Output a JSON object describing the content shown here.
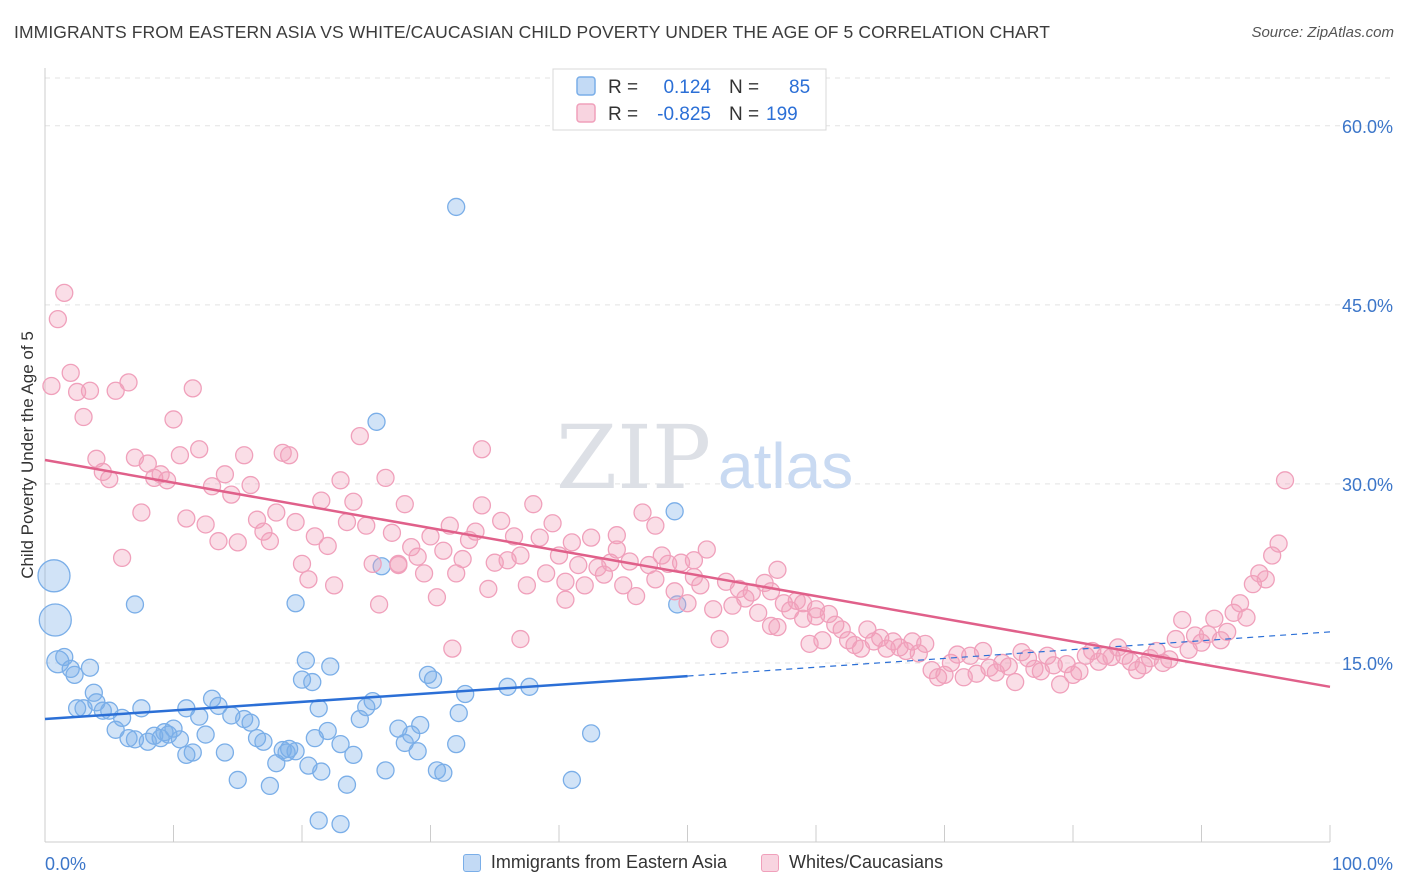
{
  "title": "IMMIGRANTS FROM EASTERN ASIA VS WHITE/CAUCASIAN CHILD POVERTY UNDER THE AGE OF 5 CORRELATION CHART",
  "source": "Source: ZipAtlas.com",
  "watermark": {
    "zip": "ZIP",
    "atlas": "atlas"
  },
  "legend_box": {
    "rows": [
      {
        "r_label": "R =",
        "r_value": "0.124",
        "n_label": "N =",
        "n_value": "85",
        "color": "#7aaee8"
      },
      {
        "r_label": "R =",
        "r_value": "-0.825",
        "n_label": "N =",
        "n_value": "199",
        "color": "#f0a0bb"
      }
    ]
  },
  "chart_data": {
    "type": "scatter",
    "title": "IMMIGRANTS FROM EASTERN ASIA VS WHITE/CAUCASIAN CHILD POVERTY UNDER THE AGE OF 5 CORRELATION CHART",
    "xlabel": "",
    "ylabel": "Child Poverty Under the Age of 5",
    "xlim": [
      0,
      100
    ],
    "ylim": [
      0,
      64
    ],
    "x_tick_labels": [
      "0.0%",
      "100.0%"
    ],
    "y_ticks": [
      15,
      30,
      45,
      60
    ],
    "y_tick_labels": [
      "15.0%",
      "30.0%",
      "45.0%",
      "60.0%"
    ],
    "grid": true,
    "legend_position": "top-center",
    "series": [
      {
        "name": "Immigrants from Eastern Asia",
        "color": "#7aaee8",
        "fill": "rgba(122,174,232,0.35)",
        "line_color": "#2b6fd6",
        "trend": {
          "x0": 0,
          "y0": 10.3,
          "x1": 50,
          "y1": 13.9,
          "x_end_dashed": 100,
          "y_end_dashed": 17.6
        },
        "points": [
          [
            0.7,
            22.3,
            "big"
          ],
          [
            0.8,
            18.6,
            "big"
          ],
          [
            1.0,
            15.1,
            "mid"
          ],
          [
            1.5,
            15.5
          ],
          [
            2.0,
            14.5
          ],
          [
            2.3,
            14.0
          ],
          [
            3.5,
            14.6
          ],
          [
            2.5,
            11.2
          ],
          [
            3.0,
            11.2
          ],
          [
            3.8,
            12.5
          ],
          [
            4.0,
            11.7
          ],
          [
            4.5,
            11.0
          ],
          [
            5.0,
            11.0
          ],
          [
            5.5,
            9.4
          ],
          [
            6.0,
            10.4
          ],
          [
            6.5,
            8.7
          ],
          [
            7.0,
            8.6
          ],
          [
            7.5,
            11.2
          ],
          [
            8.0,
            8.4
          ],
          [
            8.5,
            8.9
          ],
          [
            9.0,
            8.7
          ],
          [
            9.3,
            9.2
          ],
          [
            9.6,
            9.0
          ],
          [
            10.0,
            9.5
          ],
          [
            10.5,
            8.6
          ],
          [
            11.0,
            7.3
          ],
          [
            11.5,
            7.5
          ],
          [
            12.0,
            10.5
          ],
          [
            11.0,
            11.2
          ],
          [
            12.5,
            9.0
          ],
          [
            13.0,
            12.0
          ],
          [
            13.5,
            11.4
          ],
          [
            14.0,
            7.5
          ],
          [
            14.5,
            10.6
          ],
          [
            15.0,
            5.2
          ],
          [
            15.5,
            10.3
          ],
          [
            16.0,
            10.0
          ],
          [
            16.5,
            8.7
          ],
          [
            17.0,
            8.4
          ],
          [
            17.5,
            4.7
          ],
          [
            18.0,
            6.6
          ],
          [
            18.5,
            7.7
          ],
          [
            19.0,
            7.8
          ],
          [
            18.8,
            7.5
          ],
          [
            19.5,
            7.6
          ],
          [
            20.0,
            13.6
          ],
          [
            20.5,
            6.4
          ],
          [
            21.0,
            8.7
          ],
          [
            21.5,
            5.9
          ],
          [
            22.0,
            9.3
          ],
          [
            7.0,
            19.9
          ],
          [
            19.5,
            20.0
          ],
          [
            20.3,
            15.2
          ],
          [
            20.8,
            13.4
          ],
          [
            21.3,
            11.2
          ],
          [
            22.2,
            14.7
          ],
          [
            23.0,
            8.2
          ],
          [
            23.5,
            4.8
          ],
          [
            24.0,
            7.3
          ],
          [
            24.5,
            10.3
          ],
          [
            25.0,
            11.3
          ],
          [
            25.5,
            11.8
          ],
          [
            25.8,
            35.2
          ],
          [
            26.2,
            23.1
          ],
          [
            26.5,
            6.0
          ],
          [
            27.5,
            9.5
          ],
          [
            28.0,
            8.3
          ],
          [
            28.5,
            9.0
          ],
          [
            29.0,
            7.6
          ],
          [
            29.2,
            9.8
          ],
          [
            29.8,
            14.0
          ],
          [
            30.2,
            13.6
          ],
          [
            30.5,
            6.0
          ],
          [
            31.0,
            5.8
          ],
          [
            32.0,
            8.2
          ],
          [
            32.2,
            10.8
          ],
          [
            32.7,
            12.4
          ],
          [
            36.0,
            13.0
          ],
          [
            37.7,
            13.0
          ],
          [
            41.0,
            5.2
          ],
          [
            42.5,
            9.1
          ],
          [
            21.3,
            1.8
          ],
          [
            23.0,
            1.5
          ],
          [
            32.0,
            53.2
          ],
          [
            49.0,
            27.7
          ],
          [
            49.2,
            19.9
          ]
        ]
      },
      {
        "name": "Whites/Caucasians",
        "color": "#f0a0bb",
        "fill": "rgba(240,160,187,0.35)",
        "line_color": "#e0608a",
        "trend": {
          "x0": 0,
          "y0": 32.0,
          "x1": 100,
          "y1": 13.0
        },
        "points": [
          [
            0.5,
            38.2
          ],
          [
            1.0,
            43.8
          ],
          [
            1.5,
            46.0
          ],
          [
            2.0,
            39.3
          ],
          [
            2.5,
            37.7
          ],
          [
            3.0,
            35.6
          ],
          [
            3.5,
            37.8
          ],
          [
            4.0,
            32.1
          ],
          [
            4.5,
            31.0
          ],
          [
            5.0,
            30.4
          ],
          [
            5.5,
            37.8
          ],
          [
            6.0,
            23.8
          ],
          [
            6.5,
            38.5
          ],
          [
            7.0,
            32.2
          ],
          [
            7.5,
            27.6
          ],
          [
            8.0,
            31.7
          ],
          [
            8.5,
            30.5
          ],
          [
            9.0,
            30.8
          ],
          [
            9.5,
            30.3
          ],
          [
            10.0,
            35.4
          ],
          [
            10.5,
            32.4
          ],
          [
            11.0,
            27.1
          ],
          [
            11.5,
            38.0
          ],
          [
            12.0,
            32.9
          ],
          [
            12.5,
            26.6
          ],
          [
            13.0,
            29.8
          ],
          [
            13.5,
            25.2
          ],
          [
            14.0,
            30.8
          ],
          [
            14.5,
            29.1
          ],
          [
            15.0,
            25.1
          ],
          [
            15.5,
            32.4
          ],
          [
            16.0,
            29.9
          ],
          [
            16.5,
            27.0
          ],
          [
            17.0,
            26.0
          ],
          [
            17.5,
            25.2
          ],
          [
            18.0,
            27.6
          ],
          [
            18.5,
            32.6
          ],
          [
            19.0,
            32.4
          ],
          [
            19.5,
            26.8
          ],
          [
            20.0,
            23.3
          ],
          [
            20.5,
            22.0
          ],
          [
            21.0,
            25.6
          ],
          [
            21.5,
            28.6
          ],
          [
            22.0,
            24.8
          ],
          [
            22.5,
            21.5
          ],
          [
            23.0,
            30.3
          ],
          [
            23.5,
            26.8
          ],
          [
            24.0,
            28.5
          ],
          [
            24.5,
            34.0
          ],
          [
            25.0,
            26.5
          ],
          [
            25.5,
            23.3
          ],
          [
            26.0,
            19.9
          ],
          [
            26.5,
            30.5
          ],
          [
            27.0,
            25.9
          ],
          [
            27.5,
            23.3
          ],
          [
            28.0,
            28.3
          ],
          [
            28.5,
            24.7
          ],
          [
            29.0,
            23.9
          ],
          [
            29.5,
            22.5
          ],
          [
            30.0,
            25.6
          ],
          [
            30.5,
            20.5
          ],
          [
            31.0,
            24.4
          ],
          [
            31.5,
            26.5
          ],
          [
            32.0,
            22.5
          ],
          [
            32.5,
            23.7
          ],
          [
            33.0,
            25.3
          ],
          [
            33.5,
            26.0
          ],
          [
            34.0,
            28.2
          ],
          [
            34.5,
            21.2
          ],
          [
            35.0,
            23.4
          ],
          [
            35.5,
            26.9
          ],
          [
            36.0,
            23.6
          ],
          [
            36.5,
            25.6
          ],
          [
            37.0,
            24.0
          ],
          [
            37.5,
            21.5
          ],
          [
            38.0,
            28.3
          ],
          [
            38.5,
            25.5
          ],
          [
            39.0,
            22.5
          ],
          [
            39.5,
            26.7
          ],
          [
            40.0,
            24.0
          ],
          [
            40.5,
            21.8
          ],
          [
            41.0,
            25.1
          ],
          [
            41.5,
            23.2
          ],
          [
            42.0,
            21.5
          ],
          [
            42.5,
            25.5
          ],
          [
            43.0,
            23.0
          ],
          [
            43.5,
            22.4
          ],
          [
            44.0,
            23.4
          ],
          [
            44.5,
            24.5
          ],
          [
            45.0,
            21.5
          ],
          [
            45.5,
            23.5
          ],
          [
            46.0,
            20.6
          ],
          [
            46.5,
            27.6
          ],
          [
            47.0,
            23.2
          ],
          [
            47.5,
            22.0
          ],
          [
            48.0,
            24.0
          ],
          [
            48.5,
            23.3
          ],
          [
            49.0,
            21.0
          ],
          [
            49.5,
            23.4
          ],
          [
            50.0,
            20.0
          ],
          [
            50.5,
            22.2
          ],
          [
            51.0,
            21.5
          ],
          [
            51.5,
            24.5
          ],
          [
            52.0,
            19.5
          ],
          [
            52.5,
            17.0
          ],
          [
            53.0,
            21.8
          ],
          [
            53.5,
            19.8
          ],
          [
            54.0,
            21.2
          ],
          [
            54.5,
            20.4
          ],
          [
            55.0,
            20.9
          ],
          [
            55.5,
            19.2
          ],
          [
            56.0,
            21.7
          ],
          [
            56.5,
            18.1
          ],
          [
            57.0,
            18.0
          ],
          [
            57.5,
            20.0
          ],
          [
            58.0,
            19.4
          ],
          [
            58.5,
            20.2
          ],
          [
            59.0,
            18.7
          ],
          [
            59.5,
            16.6
          ],
          [
            60.0,
            19.5
          ],
          [
            60.5,
            16.9
          ],
          [
            61.0,
            19.1
          ],
          [
            61.5,
            18.2
          ],
          [
            62.0,
            17.8
          ],
          [
            62.5,
            16.9
          ],
          [
            63.0,
            16.5
          ],
          [
            63.5,
            16.2
          ],
          [
            64.0,
            17.8
          ],
          [
            64.5,
            16.8
          ],
          [
            65.0,
            17.1
          ],
          [
            65.5,
            16.2
          ],
          [
            66.0,
            16.8
          ],
          [
            66.5,
            16.3
          ],
          [
            67.0,
            16.0
          ],
          [
            67.5,
            16.8
          ],
          [
            68.0,
            15.8
          ],
          [
            68.5,
            16.6
          ],
          [
            69.0,
            14.4
          ],
          [
            69.5,
            13.8
          ],
          [
            70.0,
            14.0
          ],
          [
            70.5,
            15.0
          ],
          [
            71.0,
            15.7
          ],
          [
            71.5,
            13.8
          ],
          [
            72.0,
            15.6
          ],
          [
            72.5,
            14.1
          ],
          [
            73.0,
            16.0
          ],
          [
            73.5,
            14.6
          ],
          [
            74.0,
            14.2
          ],
          [
            74.5,
            15.0
          ],
          [
            75.0,
            14.7
          ],
          [
            75.5,
            13.4
          ],
          [
            76.0,
            15.9
          ],
          [
            76.5,
            15.4
          ],
          [
            77.0,
            14.5
          ],
          [
            77.5,
            14.3
          ],
          [
            78.0,
            15.6
          ],
          [
            78.5,
            14.8
          ],
          [
            79.0,
            13.2
          ],
          [
            79.5,
            14.9
          ],
          [
            80.0,
            14.0
          ],
          [
            80.5,
            14.3
          ],
          [
            81.0,
            15.6
          ],
          [
            81.5,
            16.0
          ],
          [
            82.0,
            15.1
          ],
          [
            82.5,
            15.6
          ],
          [
            83.0,
            15.5
          ],
          [
            83.5,
            16.3
          ],
          [
            84.0,
            15.6
          ],
          [
            84.5,
            15.1
          ],
          [
            85.0,
            14.4
          ],
          [
            85.5,
            14.8
          ],
          [
            86.0,
            15.4
          ],
          [
            86.5,
            16.0
          ],
          [
            87.0,
            15.0
          ],
          [
            87.5,
            15.3
          ],
          [
            88.0,
            17.0
          ],
          [
            88.5,
            18.6
          ],
          [
            89.0,
            16.1
          ],
          [
            89.5,
            17.3
          ],
          [
            90.0,
            16.7
          ],
          [
            90.5,
            17.4
          ],
          [
            91.0,
            18.7
          ],
          [
            91.5,
            16.9
          ],
          [
            92.0,
            17.6
          ],
          [
            92.5,
            19.2
          ],
          [
            93.0,
            20.0
          ],
          [
            93.5,
            18.8
          ],
          [
            94.0,
            21.6
          ],
          [
            94.5,
            22.5
          ],
          [
            95.0,
            22.0
          ],
          [
            95.5,
            24.0
          ],
          [
            96.0,
            25.0
          ],
          [
            96.5,
            30.3
          ],
          [
            37.0,
            17.0
          ],
          [
            40.5,
            20.3
          ],
          [
            44.5,
            25.7
          ],
          [
            47.5,
            26.5
          ],
          [
            56.5,
            21.0
          ],
          [
            57.0,
            22.8
          ],
          [
            59.0,
            20.0
          ],
          [
            60.0,
            18.9
          ],
          [
            27.5,
            23.2
          ],
          [
            34.0,
            32.9
          ],
          [
            50.5,
            23.6
          ],
          [
            31.7,
            16.2
          ]
        ]
      }
    ]
  }
}
